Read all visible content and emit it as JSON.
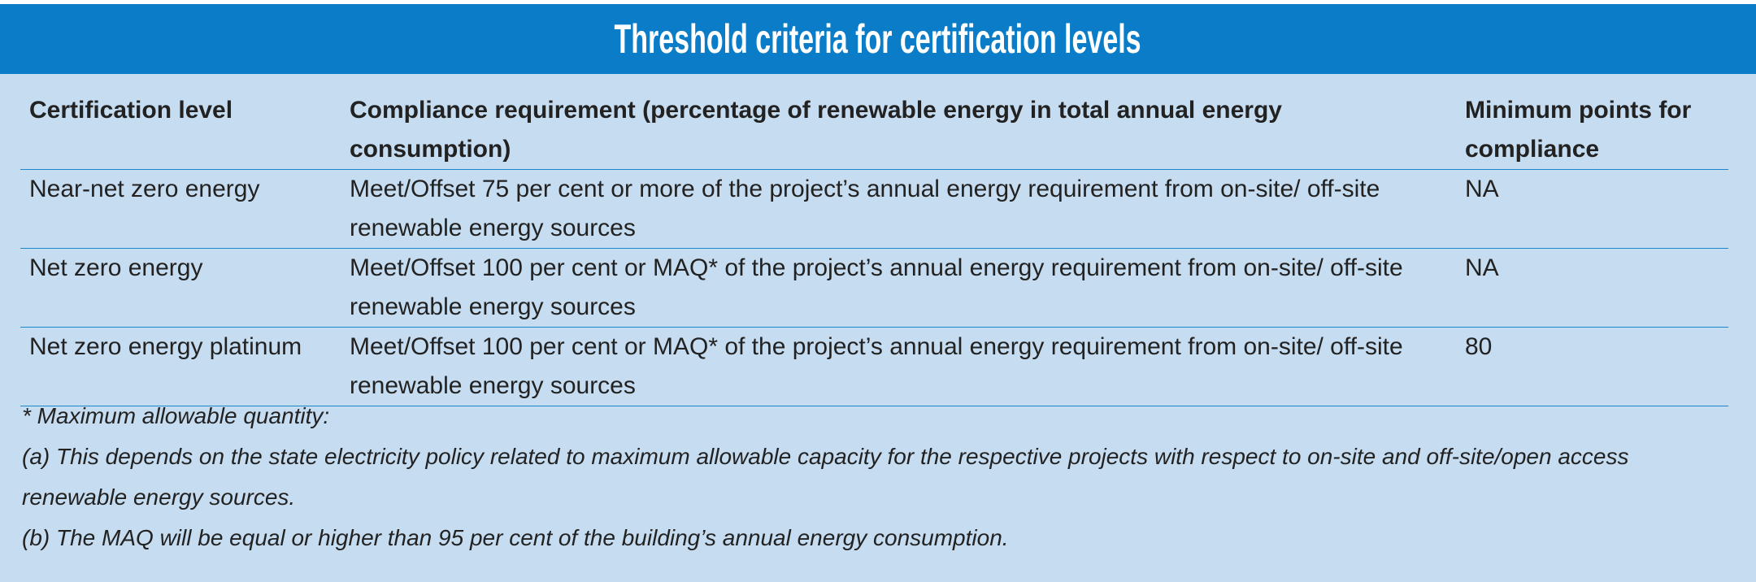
{
  "title": "Threshold criteria for certification levels",
  "table": {
    "header": [
      "Certification level",
      "Compliance requirement (percentage of renewable energy in total annual energy consumption)",
      "Minimum points for compliance"
    ],
    "rows": [
      [
        "Near-net zero energy",
        "Meet/Offset 75 per cent or more of the project’s annual energy requirement from on-site/ off-site renewable energy sources",
        "NA"
      ],
      [
        "Net zero energy",
        "Meet/Offset 100 per cent or MAQ* of the project’s annual energy requirement from on-site/ off-site renewable energy sources",
        "NA"
      ],
      [
        "Net zero energy platinum",
        "Meet/Offset 100 per cent or MAQ* of the project’s annual energy requirement from on-site/ off-site renewable energy sources",
        "80"
      ]
    ]
  },
  "footnotes": [
    "* Maximum allowable quantity:",
    "(a) This depends on the state electricity policy related to maximum allowable capacity for the respective projects with respect to on-site and off-site/open access renewable energy sources.",
    "(b) The MAQ will be equal or higher than 95 per cent of the building’s annual energy consumption."
  ]
}
